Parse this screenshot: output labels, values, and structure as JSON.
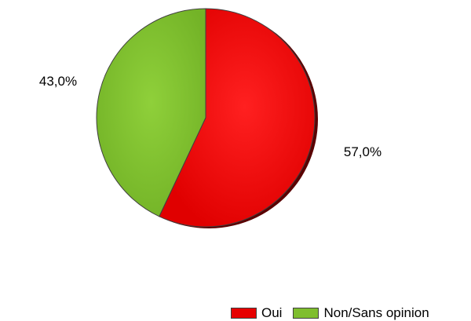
{
  "chart_data": {
    "type": "pie",
    "categories": [
      "Oui",
      "Non/Sans opinion"
    ],
    "values": [
      57.0,
      43.0
    ],
    "data_labels": [
      "57,0%",
      "43,0%"
    ],
    "colors": [
      "#e60000",
      "#7fbe2e"
    ],
    "legend_position": "bottom-right",
    "start_angle": "12 o'clock, clockwise"
  },
  "legend": {
    "items": [
      {
        "label": "Oui",
        "color": "#e60000"
      },
      {
        "label": "Non/Sans opinion",
        "color": "#7fbe2e"
      }
    ]
  }
}
